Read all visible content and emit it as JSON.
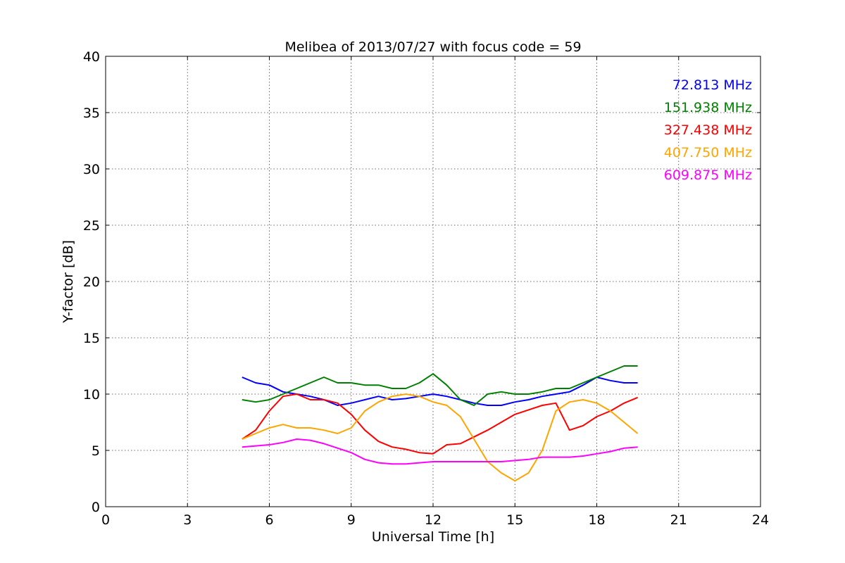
{
  "chart_data": {
    "type": "line",
    "title": "Melibea of 2013/07/27 with focus code = 59",
    "xlabel": "Universal Time [h]",
    "ylabel": "Y-factor [dB]",
    "xlim": [
      0,
      24
    ],
    "ylim": [
      0,
      40
    ],
    "xticks": [
      "0",
      "3",
      "6",
      "9",
      "12",
      "15",
      "18",
      "21",
      "24"
    ],
    "yticks": [
      "0",
      "5",
      "10",
      "15",
      "20",
      "25",
      "30",
      "35",
      "40"
    ],
    "grid": true,
    "legend_placement": "top-right",
    "series": [
      {
        "name": "72.813 MHz",
        "color": "#0000ff",
        "x": [
          5.0,
          5.5,
          6.0,
          6.5,
          7.0,
          7.5,
          8.0,
          8.5,
          9.0,
          9.5,
          10.0,
          10.5,
          11.0,
          11.5,
          12.0,
          12.5,
          13.0,
          13.5,
          14.0,
          14.5,
          15.0,
          15.5,
          16.0,
          16.5,
          17.0,
          17.5,
          18.0,
          18.5,
          19.0,
          19.5
        ],
        "values": [
          11.5,
          11.0,
          10.8,
          10.2,
          10.0,
          9.8,
          9.5,
          9.0,
          9.2,
          9.5,
          9.8,
          9.5,
          9.6,
          9.8,
          10.0,
          9.8,
          9.5,
          9.2,
          9.0,
          9.0,
          9.3,
          9.5,
          9.8,
          10.0,
          10.2,
          10.8,
          11.5,
          11.2,
          11.0,
          11.0
        ]
      },
      {
        "name": "151.938 MHz",
        "color": "#008000",
        "x": [
          5.0,
          5.5,
          6.0,
          6.5,
          7.0,
          7.5,
          8.0,
          8.5,
          9.0,
          9.5,
          10.0,
          10.5,
          11.0,
          11.5,
          12.0,
          12.5,
          13.0,
          13.5,
          14.0,
          14.5,
          15.0,
          15.5,
          16.0,
          16.5,
          17.0,
          17.5,
          18.0,
          18.5,
          19.0,
          19.5
        ],
        "values": [
          9.5,
          9.3,
          9.5,
          10.0,
          10.5,
          11.0,
          11.5,
          11.0,
          11.0,
          10.8,
          10.8,
          10.5,
          10.5,
          11.0,
          11.8,
          10.8,
          9.5,
          9.0,
          10.0,
          10.2,
          10.0,
          10.0,
          10.2,
          10.5,
          10.5,
          11.0,
          11.5,
          12.0,
          12.5,
          12.5
        ]
      },
      {
        "name": "327.438 MHz",
        "color": "#ff0000",
        "x": [
          5.0,
          5.5,
          6.0,
          6.5,
          7.0,
          7.5,
          8.0,
          8.5,
          9.0,
          9.5,
          10.0,
          10.5,
          11.0,
          11.5,
          12.0,
          12.5,
          13.0,
          13.5,
          14.0,
          14.5,
          15.0,
          15.5,
          16.0,
          16.5,
          17.0,
          17.5,
          18.0,
          18.5,
          19.0,
          19.5
        ],
        "values": [
          6.0,
          6.8,
          8.5,
          9.8,
          10.0,
          9.5,
          9.5,
          9.2,
          8.2,
          6.8,
          5.8,
          5.3,
          5.1,
          4.8,
          4.7,
          5.5,
          5.6,
          6.2,
          6.8,
          7.5,
          8.2,
          8.6,
          9.0,
          9.2,
          6.8,
          7.2,
          8.0,
          8.5,
          9.2,
          9.7
        ]
      },
      {
        "name": "407.750 MHz",
        "color": "#ffa500",
        "x": [
          5.0,
          5.5,
          6.0,
          6.5,
          7.0,
          7.5,
          8.0,
          8.5,
          9.0,
          9.5,
          10.0,
          10.5,
          11.0,
          11.5,
          12.0,
          12.5,
          13.0,
          13.5,
          14.0,
          14.5,
          15.0,
          15.5,
          16.0,
          16.5,
          17.0,
          17.5,
          18.0,
          18.5,
          19.0,
          19.5
        ],
        "values": [
          6.0,
          6.5,
          7.0,
          7.3,
          7.0,
          7.0,
          6.8,
          6.5,
          7.0,
          8.5,
          9.3,
          9.8,
          10.0,
          9.8,
          9.3,
          9.0,
          8.0,
          6.0,
          4.0,
          3.0,
          2.3,
          3.0,
          5.0,
          8.5,
          9.3,
          9.5,
          9.2,
          8.5,
          7.5,
          6.5
        ]
      },
      {
        "name": "609.875 MHz",
        "color": "#ff00ff",
        "x": [
          5.0,
          5.5,
          6.0,
          6.5,
          7.0,
          7.5,
          8.0,
          8.5,
          9.0,
          9.5,
          10.0,
          10.5,
          11.0,
          11.5,
          12.0,
          12.5,
          13.0,
          13.5,
          14.0,
          14.5,
          15.0,
          15.5,
          16.0,
          16.5,
          17.0,
          17.5,
          18.0,
          18.5,
          19.0,
          19.5
        ],
        "values": [
          5.3,
          5.4,
          5.5,
          5.7,
          6.0,
          5.9,
          5.6,
          5.2,
          4.8,
          4.2,
          3.9,
          3.8,
          3.8,
          3.9,
          4.0,
          4.0,
          4.0,
          4.0,
          4.0,
          4.0,
          4.1,
          4.2,
          4.4,
          4.4,
          4.4,
          4.5,
          4.7,
          4.9,
          5.2,
          5.3
        ]
      }
    ]
  }
}
